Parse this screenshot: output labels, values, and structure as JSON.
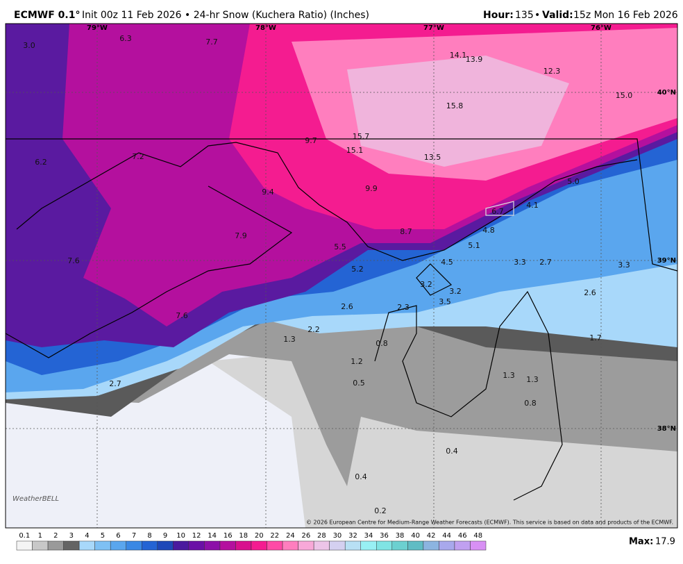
{
  "header": {
    "model": "ECMWF 0.1°",
    "product": "Init 00z 11 Feb 2026 • 24-hr Snow (Kuchera Ratio) (Inches)",
    "hour_label": "Hour:",
    "hour": 135,
    "separator": "•",
    "valid_label": "Valid:",
    "valid": "15z Mon 16 Feb 2026"
  },
  "map": {
    "longitudes": [
      "79°W",
      "78°W",
      "77°W",
      "76°W"
    ],
    "latitudes": [
      "40°N",
      "39°N",
      "38°N"
    ],
    "point_labels": [
      "3.0",
      "6.3",
      "7.7",
      "14.1",
      "13.9",
      "12.3",
      "15.8",
      "15.0",
      "15.7",
      "9.7",
      "15.1",
      "13.5",
      "6.2",
      "7.2",
      "9.4",
      "9.9",
      "5.0",
      "6.7",
      "4.1",
      "4.8",
      "8.7",
      "7.9",
      "5.5",
      "5.1",
      "7.6",
      "4.5",
      "3.3",
      "2.7",
      "3.3",
      "5.2",
      "3.2",
      "3.2",
      "2.6",
      "3.5",
      "2.6",
      "2.3",
      "7.6",
      "2.2",
      "1.3",
      "1.7",
      "0.8",
      "1.2",
      "1.3",
      "1.3",
      "2.7",
      "0.5",
      "0.8",
      "0.4",
      "0.4",
      "0.2"
    ],
    "logo": "WeatherBELL",
    "credit": "© 2026 European Centre for Medium-Range Weather Forecasts (ECMWF). This service is based on data and products of the ECMWF."
  },
  "colorbar": {
    "labels": [
      0.1,
      1,
      2,
      3,
      4,
      5,
      6,
      7,
      8,
      9,
      10,
      12,
      14,
      16,
      18,
      20,
      22,
      24,
      26,
      28,
      30,
      32,
      34,
      36,
      38,
      40,
      42,
      44,
      46,
      48
    ],
    "colors": [
      "#f4f4f4",
      "#c8c8c8",
      "#9a9a9a",
      "#646464",
      "#a8d8fa",
      "#7ec0f4",
      "#5aa6ee",
      "#3a88e4",
      "#2464d4",
      "#1e48b8",
      "#4a1a9e",
      "#6a10a6",
      "#8c10a8",
      "#b4109e",
      "#d8108e",
      "#f41c90",
      "#ff4aa6",
      "#ff7ebe",
      "#f8a8d8",
      "#ecc4e8",
      "#d4d0f0",
      "#b8e0f4",
      "#98f0f4",
      "#80e4e4",
      "#6cd0d0",
      "#60bcc4",
      "#8cb4e0",
      "#a8a8ec",
      "#c0a0f0",
      "#d890f4"
    ],
    "max_label": "Max:",
    "max": 17.9
  }
}
